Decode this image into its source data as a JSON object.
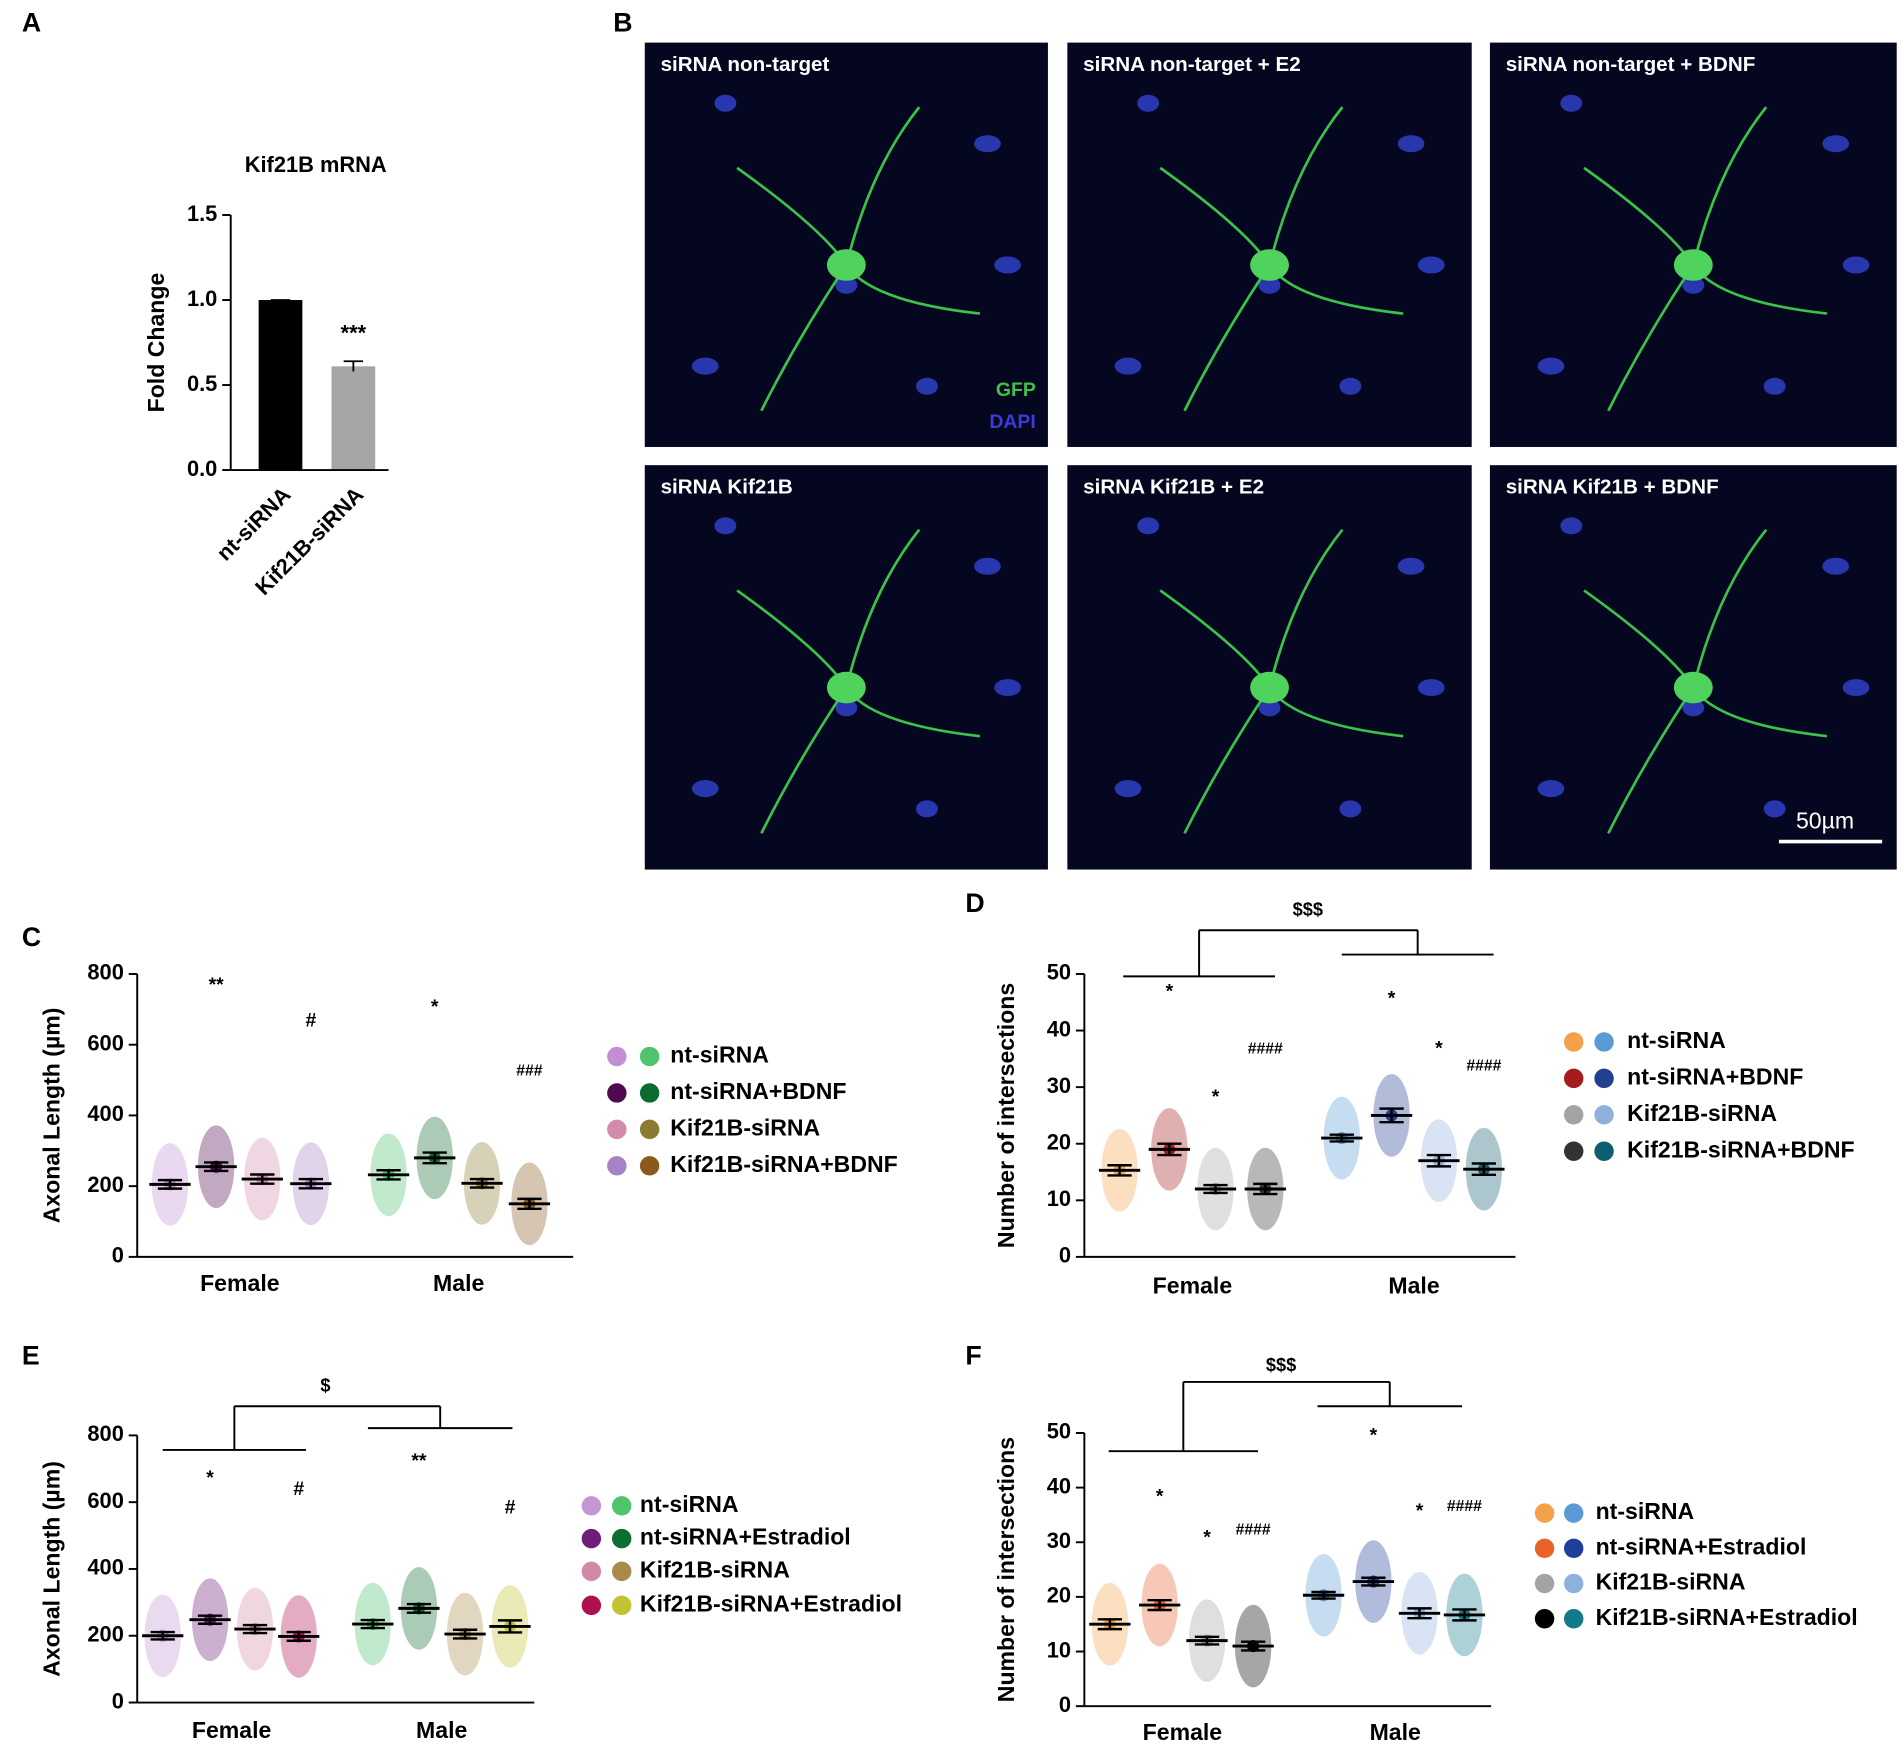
{
  "images": {
    "panel": "B",
    "tiles": [
      "siRNA non-target",
      "siRNA non-target + E2",
      "siRNA non-target + BDNF",
      "siRNA Kif21B",
      "siRNA Kif21B + E2",
      "siRNA Kif21B + BDNF"
    ],
    "channels": [
      {
        "name": "GFP",
        "color": "#3cc24a"
      },
      {
        "name": "DAPI",
        "color": "#3b3bd6"
      }
    ],
    "scale_bar": "50µm"
  },
  "chart_data": [
    {
      "panel": "A",
      "type": "bar",
      "title": "Kif21B mRNA",
      "y_label": "Fold Change",
      "categories": [
        "nt-siRNA",
        "Kif21B-siRNA"
      ],
      "values": [
        1.0,
        0.61
      ],
      "errors": [
        0.0,
        0.03
      ],
      "colors": [
        "#000000",
        "#a5a5a8"
      ],
      "significance": [
        null,
        "***"
      ],
      "ylim": [
        0,
        1.5
      ],
      "yticks": [
        {
          "value": 0,
          "label": "0.0"
        },
        {
          "value": 0.5,
          "label": "0.5"
        },
        {
          "value": 1,
          "label": "1.0"
        },
        {
          "value": 1.5,
          "label": "1.5"
        }
      ]
    },
    {
      "panel": "C",
      "type": "dot",
      "y_label": "Axonal  Length (µm)",
      "groups": [
        "Female",
        "Male"
      ],
      "series": [
        {
          "name": "nt-siRNA",
          "colors": [
            "#c18fd2",
            "#4ec46c"
          ],
          "values": [
            205,
            232
          ],
          "errors": [
            12,
            13
          ],
          "significance": [
            null,
            null
          ]
        },
        {
          "name": "nt-siRNA+BDNF",
          "colors": [
            "#4d0a4f",
            "#0e6b2f"
          ],
          "values": [
            255,
            280
          ],
          "errors": [
            12,
            15
          ],
          "significance": [
            "**",
            "*"
          ]
        },
        {
          "name": "Kif21B-siRNA",
          "colors": [
            "#d48aab",
            "#8c7a32"
          ],
          "values": [
            220,
            208
          ],
          "errors": [
            13,
            12
          ],
          "significance": [
            null,
            null
          ]
        },
        {
          "name": "Kif21B-siRNA+BDNF",
          "colors": [
            "#a882c4",
            "#8a5a1c"
          ],
          "values": [
            207,
            150
          ],
          "errors": [
            13,
            14
          ],
          "significance": [
            "#",
            "###"
          ]
        }
      ],
      "ylim": [
        0,
        800
      ],
      "yticks": [
        0,
        200,
        400,
        600,
        800
      ]
    },
    {
      "panel": "D",
      "type": "dot",
      "y_label": "Number of intersections",
      "groups": [
        "Female",
        "Male"
      ],
      "comparison": "$$$",
      "series": [
        {
          "name": "nt-siRNA",
          "colors": [
            "#f5a04a",
            "#5b9bd5"
          ],
          "values": [
            15.3,
            21
          ],
          "errors": [
            0.9,
            0.6
          ],
          "significance": [
            null,
            null
          ]
        },
        {
          "name": "nt-siRNA+BDNF",
          "colors": [
            "#a51c1c",
            "#223f90"
          ],
          "values": [
            19,
            25
          ],
          "errors": [
            1,
            1.2
          ],
          "significance": [
            "*",
            "*"
          ]
        },
        {
          "name": "Kif21B-siRNA",
          "colors": [
            "#a3a3a3",
            "#8fb0dc"
          ],
          "values": [
            12,
            17
          ],
          "errors": [
            0.7,
            1
          ],
          "significance": [
            "*",
            "*"
          ]
        },
        {
          "name": "Kif21B-siRNA+BDNF",
          "colors": [
            "#333333",
            "#0f5e70"
          ],
          "values": [
            12,
            15.5
          ],
          "errors": [
            0.9,
            1
          ],
          "significance": [
            "####",
            "####"
          ]
        }
      ],
      "ylim": [
        0,
        50
      ],
      "yticks": [
        0,
        10,
        20,
        30,
        40,
        50
      ]
    },
    {
      "panel": "E",
      "type": "dot",
      "y_label": "Axonal  Length (µm)",
      "groups": [
        "Female",
        "Male"
      ],
      "comparison": "$",
      "series": [
        {
          "name": "nt-siRNA",
          "colors": [
            "#c496d3",
            "#4ec46c"
          ],
          "values": [
            200,
            235
          ],
          "errors": [
            11,
            12
          ],
          "significance": [
            null,
            null
          ]
        },
        {
          "name": "nt-siRNA+Estradiol",
          "colors": [
            "#6e1e78",
            "#0c6e30"
          ],
          "values": [
            248,
            282
          ],
          "errors": [
            12,
            13
          ],
          "significance": [
            "*",
            "**"
          ]
        },
        {
          "name": "Kif21B-siRNA",
          "colors": [
            "#d08aa8",
            "#a88a4a"
          ],
          "values": [
            220,
            205
          ],
          "errors": [
            12,
            13
          ],
          "significance": [
            null,
            null
          ]
        },
        {
          "name": "Kif21B-siRNA+Estradiol",
          "colors": [
            "#b01050",
            "#c2c232"
          ],
          "values": [
            198,
            228
          ],
          "errors": [
            13,
            18
          ],
          "significance": [
            "#",
            "#"
          ]
        }
      ],
      "ylim": [
        0,
        800
      ],
      "yticks": [
        0,
        200,
        400,
        600,
        800
      ]
    },
    {
      "panel": "F",
      "type": "dot",
      "y_label": "Number of intersections",
      "groups": [
        "Female",
        "Male"
      ],
      "comparison": "$$$",
      "series": [
        {
          "name": "nt-siRNA",
          "colors": [
            "#f5a04a",
            "#5b9bd5"
          ],
          "values": [
            15,
            20.3
          ],
          "errors": [
            0.9,
            0.6
          ],
          "significance": [
            null,
            null
          ]
        },
        {
          "name": "nt-siRNA+Estradiol",
          "colors": [
            "#e8622a",
            "#1f3f9a"
          ],
          "values": [
            18.5,
            22.8
          ],
          "errors": [
            0.9,
            0.7
          ],
          "significance": [
            "*",
            "*"
          ]
        },
        {
          "name": "Kif21B-siRNA",
          "colors": [
            "#a3a3a3",
            "#8fb0dc"
          ],
          "values": [
            12,
            17
          ],
          "errors": [
            0.7,
            0.9
          ],
          "significance": [
            "*",
            "*"
          ]
        },
        {
          "name": "Kif21B-siRNA+Estradiol",
          "colors": [
            "#000000",
            "#117a8b"
          ],
          "values": [
            11,
            16.7
          ],
          "errors": [
            0.8,
            1
          ],
          "significance": [
            "####",
            "####"
          ]
        }
      ],
      "ylim": [
        0,
        50
      ],
      "yticks": [
        0,
        10,
        20,
        30,
        40,
        50
      ]
    }
  ]
}
